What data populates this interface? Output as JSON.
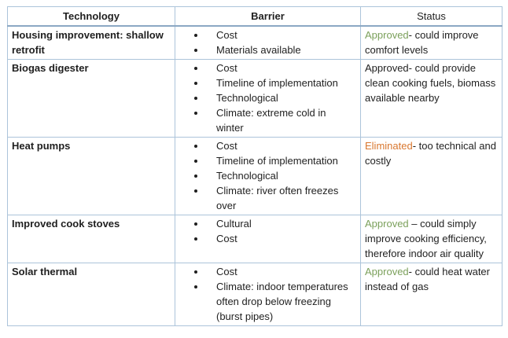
{
  "table": {
    "headers": {
      "technology": "Technology",
      "barrier": "Barrier",
      "status": "Status"
    },
    "colors": {
      "approved_green": "#7ba05b",
      "eliminated_orange": "#d9772f",
      "border_blue": "#acc4da",
      "header_border_blue": "#8ca8c4",
      "body_text": "#1f1f1f"
    },
    "rows": [
      {
        "technology": "Housing improvement: shallow retrofit",
        "barriers": [
          "Cost",
          "Materials available"
        ],
        "status": {
          "keyword": "Approved",
          "color": "green",
          "rest": "- could improve comfort levels"
        }
      },
      {
        "technology": "Biogas digester",
        "barriers": [
          "Cost",
          "Timeline of implementation",
          "Technological",
          "Climate: extreme cold in winter"
        ],
        "status": {
          "keyword": "Approved",
          "color": "text",
          "rest": "- could provide clean cooking fuels, biomass available nearby"
        }
      },
      {
        "technology": "Heat pumps",
        "barriers": [
          "Cost",
          "Timeline of implementation",
          "Technological",
          "Climate: river often freezes over"
        ],
        "status": {
          "keyword": "Eliminated",
          "color": "orange",
          "rest": "- too technical and costly"
        }
      },
      {
        "technology": "Improved cook stoves",
        "barriers": [
          "Cultural",
          "Cost"
        ],
        "status": {
          "keyword": "Approved",
          "color": "green",
          "rest": " – could simply improve cooking efficiency, therefore indoor air quality"
        }
      },
      {
        "technology": "Solar thermal",
        "barriers": [
          "Cost",
          "Climate: indoor temperatures often drop below freezing (burst pipes)"
        ],
        "status": {
          "keyword": "Approved",
          "color": "green",
          "rest": "- could heat water instead of gas"
        }
      }
    ]
  }
}
